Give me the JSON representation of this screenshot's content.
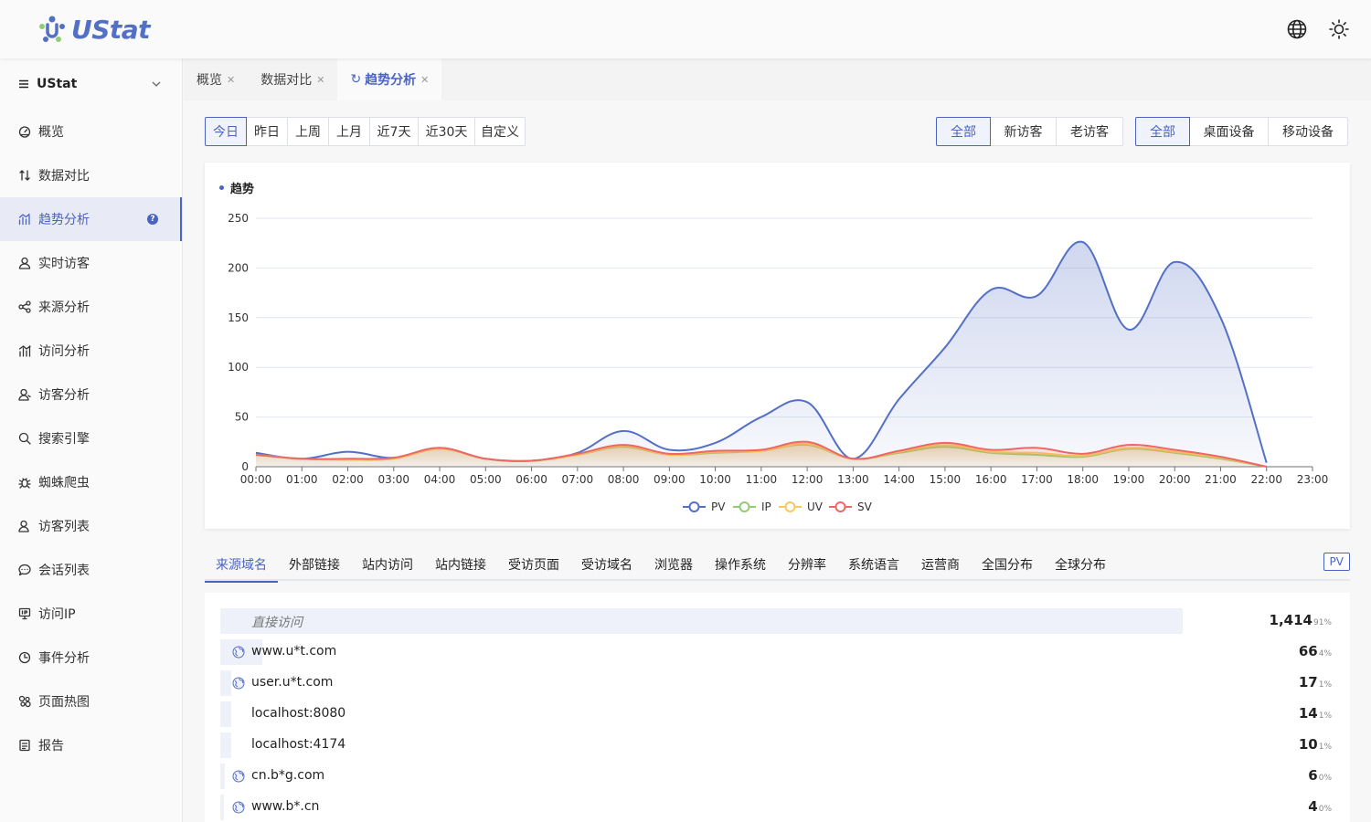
{
  "header": {
    "logo_text": "UStat"
  },
  "sidebar": {
    "site_name": "UStat",
    "items": [
      {
        "label": "概览",
        "icon": "dashboard-icon"
      },
      {
        "label": "数据对比",
        "icon": "compare-icon"
      },
      {
        "label": "趋势分析",
        "icon": "trend-icon",
        "active": true
      },
      {
        "label": "实时访客",
        "icon": "user-icon"
      },
      {
        "label": "来源分析",
        "icon": "share-icon"
      },
      {
        "label": "访问分析",
        "icon": "bar-chart-icon"
      },
      {
        "label": "访客分析",
        "icon": "users-icon"
      },
      {
        "label": "搜索引擎",
        "icon": "search-icon"
      },
      {
        "label": "蜘蛛爬虫",
        "icon": "bug-icon"
      },
      {
        "label": "访客列表",
        "icon": "user-list-icon"
      },
      {
        "label": "会话列表",
        "icon": "chat-icon"
      },
      {
        "label": "访问IP",
        "icon": "ip-icon"
      },
      {
        "label": "事件分析",
        "icon": "clock-icon"
      },
      {
        "label": "页面热图",
        "icon": "heatmap-icon"
      },
      {
        "label": "报告",
        "icon": "report-icon"
      }
    ]
  },
  "tabs": [
    {
      "label": "概览"
    },
    {
      "label": "数据对比"
    },
    {
      "label": "趋势分析",
      "active": true
    }
  ],
  "filters": {
    "date_ranges": [
      "今日",
      "昨日",
      "上周",
      "上月",
      "近7天",
      "近30天",
      "自定义"
    ],
    "visitor_types": [
      "全部",
      "新访客",
      "老访客"
    ],
    "devices": [
      "全部",
      "桌面设备",
      "移动设备"
    ]
  },
  "trend_card": {
    "title": "趋势"
  },
  "chart_data": {
    "type": "area",
    "title": "趋势",
    "x": [
      "00:00",
      "01:00",
      "02:00",
      "03:00",
      "04:00",
      "05:00",
      "06:00",
      "07:00",
      "08:00",
      "09:00",
      "10:00",
      "11:00",
      "12:00",
      "13:00",
      "14:00",
      "15:00",
      "16:00",
      "17:00",
      "18:00",
      "19:00",
      "20:00",
      "21:00",
      "22:00",
      "23:00"
    ],
    "ylim": [
      0,
      250
    ],
    "yticks": [
      0,
      50,
      100,
      150,
      200,
      250
    ],
    "grid": true,
    "legend": "bottom",
    "series": [
      {
        "name": "PV",
        "color": "#5470c6",
        "values": [
          14,
          8,
          15,
          9,
          19,
          8,
          6,
          14,
          36,
          17,
          24,
          50,
          65,
          8,
          68,
          120,
          178,
          172,
          226,
          138,
          206,
          150,
          4,
          null
        ]
      },
      {
        "name": "IP",
        "color": "#91cc75",
        "values": [
          12,
          8,
          7,
          8,
          18,
          8,
          6,
          12,
          20,
          12,
          14,
          16,
          22,
          8,
          14,
          20,
          14,
          12,
          10,
          18,
          14,
          8,
          0,
          null
        ]
      },
      {
        "name": "UV",
        "color": "#fac858",
        "values": [
          12,
          8,
          7,
          8,
          18,
          8,
          6,
          12,
          21,
          12,
          15,
          16,
          23,
          8,
          15,
          22,
          15,
          14,
          11,
          19,
          15,
          9,
          0,
          null
        ]
      },
      {
        "name": "SV",
        "color": "#ee6666",
        "values": [
          12,
          8,
          8,
          9,
          19,
          8,
          6,
          13,
          22,
          13,
          16,
          17,
          25,
          8,
          16,
          24,
          17,
          19,
          13,
          22,
          17,
          10,
          0,
          null
        ]
      }
    ]
  },
  "sub_tabs": [
    "来源域名",
    "外部链接",
    "站内访问",
    "站内链接",
    "受访页面",
    "受访域名",
    "浏览器",
    "操作系统",
    "分辨率",
    "系统语言",
    "运营商",
    "全国分布",
    "全球分布"
  ],
  "metric_tag": "PV",
  "list": [
    {
      "label": "直接访问",
      "value": "1,414",
      "pct": "91%",
      "share": 0.91,
      "favicon": false,
      "italic": true
    },
    {
      "label": "www.u*t.com",
      "value": "66",
      "pct": "4%",
      "share": 0.04,
      "favicon": true
    },
    {
      "label": "user.u*t.com",
      "value": "17",
      "pct": "1%",
      "share": 0.01,
      "favicon": true
    },
    {
      "label": "localhost:8080",
      "value": "14",
      "pct": "1%",
      "share": 0.01,
      "favicon": false
    },
    {
      "label": "localhost:4174",
      "value": "10",
      "pct": "1%",
      "share": 0.01,
      "favicon": false
    },
    {
      "label": "cn.b*g.com",
      "value": "6",
      "pct": "0%",
      "share": 0.004,
      "favicon": true
    },
    {
      "label": "www.b*.cn",
      "value": "4",
      "pct": "0%",
      "share": 0.003,
      "favicon": true
    }
  ]
}
